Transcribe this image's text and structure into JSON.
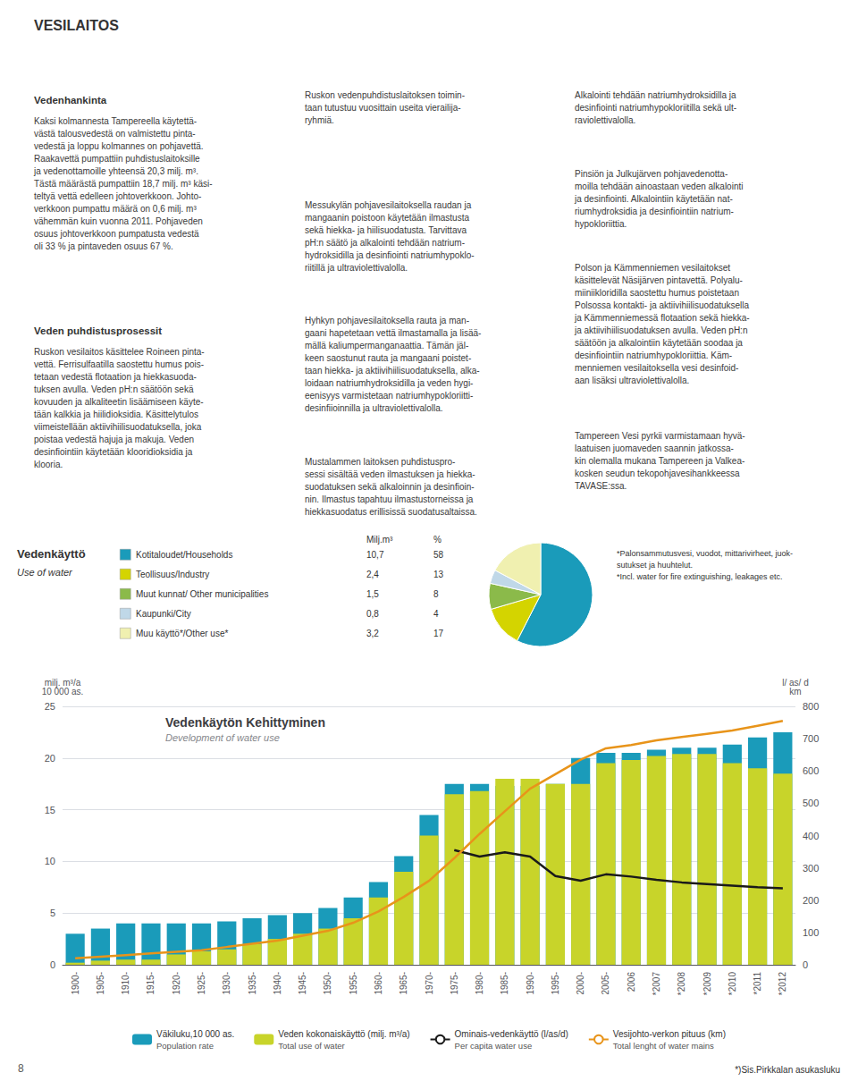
{
  "title": "VESILAITOS",
  "annotations": [
    "Vedenhankinta",
    "Kaksi kolmannesta Tampereella käytettä-\nvästä talousvedestä on valmistettu pinta-\nvedestä ja loppu kolmannes on pohjavettä.\nRaakavettä pumpattiin puhdistuslaitoksille\nja vedenottamoille yhteensä 20,3 milj. m³.\nTästä määrästä pumpattiin 18,7 milj. m³ käsi-\nteltyä vettä edelleen johtoverkkoon. Johto-\nverkkoon pumpattu määrä on 0,6 milj. m³\nvähemmän kuin vuonna 2011. Pohjaveden\nosuus johtoverkkoon pumpatusta vedestä\noli 33 % ja pintaveden osuus 67 %.",
    "Veden puhdistusprosessit",
    "Ruskon vesilaitos käsittelee Roineen pinta-\nvettä. Ferrisulfaatilla saostettu humus pois-\ntetaan vedestä flotaation ja hiekkasuoda-\ntuksen avulla. Veden pH:n säätöön sekä\nkovuuden ja alkaliteetin lisäämiseen käyte-\ntään kalkkia ja hiilidioksidia. Käsittelytulos\nviimeistellään aktiivihiilisuodatuksella, joka\npoistaa vedestä hajuja ja makuja. Veden\ndesinfiointiin käytetään klooridioksidia ja\nklooria.",
    "Ruskon vedenpuhdistuslaitoksen toimin-\ntaan tutustuu vuosittain useita vierailija-\nryhmiä.",
    "Messukylän pohjavesilaitoksella raudan ja\nmangaanin poistoon käytetään ilmastusta\nsekä hiekka- ja hiilisuodatusta. Tarvittava\npH:n säätö ja alkalointi tehdään natrium-\nhydroksidilla ja desinfiointi natriumhypoklo-\nriitillä ja ultraviolettivalolla.",
    "Hyhkyn pohjavesilaitoksella rauta ja man-\ngaani hapetetaan vettä ilmastamalla ja lisää-\nmällä kaliumpermanganaattia. Tämän jäl-\nkeen saostunut rauta ja mangaani poistet-\ntaan hiekka- ja aktiivihiilisuodatuksella, alka-\nloidaan natriumhydroksidilla ja veden hygi-\neenisyys varmistetaan natriumhypokloriitti-\ndesinfiioinnilla ja ultraviolettivalolla.",
    "Mustalammen laitoksen puhdistuspro-\nsessi sisältää veden ilmastuksen ja hiekka-\nsuodatuksen sekä alkaloinnin ja desinfioin-\nnin. Ilmastus tapahtuu ilmastustorneissa ja\nhiekkasuodatus erillisissä suodatusaltaissa.",
    "Alkalointi tehdään natriumhydroksidilla ja\ndesinfiointi natriumhypokloriitilla sekä ult-\nraviolettivalolla.",
    "Pinsiön ja Julkujärven pohjavedenotta-\nmoilla tehdään ainoastaan veden alkalointi\nja desinfiointi. Alkalointiin käytetään nat-\nriumhydroksidia ja desinfiointiin natrium-\nhypokloriittia.",
    "Polson ja Kämmenniemen vesilaitokset\nkäsittelevät Näsijärven pintavettä. Polyalu-\nmiiniikloridilla saostettu humus poistetaan\nPolsossa kontakti- ja aktiivihiilisuodatuksella\nja Kämmenniemessä flotaation sekä hiekka-\nja aktiivihiilisuodatuksen avulla. Veden pH:n\nsäätöön ja alkalointiin käytetään soodaa ja\ndesinfiointiin natriumhypokloriittia. Käm-\nmenniemen vesilaitoksella vesi desinfoid-\naan lisäksi ultraviolettivalolla.",
    "Tampereen Vesi pyrkii varmistamaan hyvä-\nlaatuisen juomaveden saannin jatkossa-\nkin olemalla mukana Tampereen ja Valkea-\nkosken seudun tekopohjavesihankkeessa\nTAVASE:ssa."
  ],
  "chart_data": [
    {
      "type": "pie",
      "title": "Vedenkäyttö",
      "subtitle": "Use of water",
      "categories": [
        "Kotitaloudet/Households",
        "Teollisuus/Industry",
        "Muut kunnat/ Other municipalities",
        "Kaupunki/City",
        "Muu käyttö*/Other use*"
      ],
      "values": [
        10.7,
        2.4,
        1.5,
        0.8,
        3.2
      ],
      "value_labels": [
        "10,7",
        "2,4",
        "1,5",
        "0,8",
        "3,2"
      ],
      "shares": [
        58,
        13,
        8,
        4,
        17
      ],
      "column_labels": [
        "Milj.m³",
        "%"
      ],
      "colors": [
        "#1a9bba",
        "#d4d400",
        "#8bba4a",
        "#c0d8e8",
        "#f0f0b0"
      ],
      "annotations": [
        "*Palonsammutusvesi, vuodot, mittarivirheet, juok-\nsutukset ja huuhtelut.\n*Incl. water for fire extinguishing, leakages etc."
      ]
    },
    {
      "type": "bar",
      "title": "Vedenkäytön Kehittyminen",
      "subtitle": "Development of water use",
      "categories": [
        "1900-",
        "1905-",
        "1910-",
        "1915-",
        "1920-",
        "1925-",
        "1930-",
        "1935-",
        "1940-",
        "1945-",
        "1950-",
        "1955-",
        "1960-",
        "1965-",
        "1970-",
        "1975-",
        "1980-",
        "1985-",
        "1990-",
        "1995-",
        "2000-",
        "2005-",
        "2006",
        "*2007",
        "*2008",
        "*2009",
        "*2010",
        "*2011",
        "*2012"
      ],
      "series": [
        {
          "name": "Väkiluku,10 000 as.\nPopulation rate",
          "type": "bar",
          "color": "#1a9bba",
          "values": [
            3.0,
            3.5,
            4.0,
            4.0,
            4.0,
            4.0,
            4.2,
            4.5,
            4.8,
            5.0,
            5.5,
            6.5,
            8.0,
            10.5,
            14.5,
            17.5,
            17.5,
            17.3,
            17.3,
            17.5,
            20.0,
            20.5,
            20.5,
            20.8,
            21.0,
            21.0,
            21.3,
            22.0,
            22.5
          ]
        },
        {
          "name": "Veden kokonaiskäyttö (milj. m³/a)\nTotal use of water",
          "type": "bar",
          "color": "#c8d42a",
          "values": [
            0.2,
            0.4,
            0.5,
            0.5,
            1.0,
            1.3,
            1.5,
            2.0,
            2.5,
            3.0,
            3.5,
            4.5,
            6.5,
            9.0,
            12.5,
            16.5,
            16.8,
            18.0,
            18.0,
            17.5,
            17.5,
            19.5,
            19.8,
            20.2,
            20.4,
            20.4,
            19.5,
            19.0,
            18.5
          ]
        },
        {
          "name": "Ominais-vedenkäyttö (l/as/d)\nPer capita water use",
          "type": "line",
          "color": "#1a1a1a",
          "axis": "y2",
          "values": [
            null,
            null,
            null,
            null,
            null,
            null,
            null,
            null,
            null,
            null,
            null,
            null,
            null,
            null,
            null,
            355,
            335,
            348,
            335,
            275,
            260,
            280,
            273,
            263,
            255,
            250,
            245,
            240,
            237
          ]
        },
        {
          "name": "Vesijohto-verkon pituus (km)\nTotal lenght of water mains",
          "type": "line",
          "color": "#e8941a",
          "axis": "y2",
          "values": [
            20,
            25,
            30,
            35,
            40,
            45,
            55,
            65,
            75,
            90,
            105,
            130,
            165,
            210,
            260,
            330,
            405,
            475,
            545,
            590,
            635,
            670,
            680,
            695,
            705,
            715,
            725,
            740,
            755
          ]
        }
      ],
      "ylabel": "milj. m³/a\n10 000 as.",
      "y2label": "l/ as/ d\nkm",
      "ylim": [
        0,
        25
      ],
      "yticks": [
        0,
        5,
        10,
        15,
        20,
        25
      ],
      "y2lim": [
        0,
        800
      ],
      "y2ticks": [
        0,
        100,
        200,
        300,
        400,
        500,
        600,
        700,
        800
      ],
      "grid": true,
      "stacked": false,
      "legend": "bottom",
      "annotations": [
        "*)Sis.Pirkkalan asukasluku",
        "8"
      ]
    }
  ]
}
